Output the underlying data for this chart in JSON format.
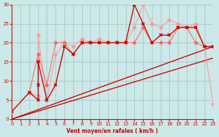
{
  "xlabel": "Vent moyen/en rafales ( km/h )",
  "ylabel": "",
  "xlim": [
    0,
    23
  ],
  "ylim": [
    0,
    30
  ],
  "xticks": [
    0,
    1,
    2,
    3,
    4,
    5,
    6,
    7,
    8,
    9,
    10,
    11,
    12,
    13,
    14,
    15,
    16,
    17,
    18,
    19,
    20,
    21,
    22,
    23
  ],
  "yticks": [
    0,
    5,
    10,
    15,
    20,
    25,
    30
  ],
  "bg_color": "#cce8e8",
  "grid_color": "#aacccc",
  "dark_red": "#cc0000",
  "light_pink": "#ff9999",
  "medium_pink": "#ff6666",
  "series_dark": {
    "x": [
      0,
      2,
      3,
      3,
      3,
      4,
      5,
      6,
      7,
      8,
      9,
      10,
      11,
      12,
      13,
      14,
      15,
      16,
      17,
      18,
      19,
      20,
      21,
      22,
      23
    ],
    "y": [
      2,
      7,
      5,
      9,
      15,
      5,
      9,
      19,
      17,
      20,
      20,
      20,
      20,
      20,
      20,
      30,
      25,
      20,
      22,
      22,
      24,
      24,
      24,
      19,
      19
    ]
  },
  "line1": {
    "x": [
      0,
      23
    ],
    "y": [
      0,
      19
    ]
  },
  "line2": {
    "x": [
      0,
      23
    ],
    "y": [
      0,
      16
    ]
  },
  "series_light1": {
    "x": [
      0,
      2,
      3,
      3,
      4,
      5,
      6,
      7,
      8,
      9,
      10,
      11,
      12,
      13,
      14,
      15,
      16,
      17,
      18,
      19,
      20,
      21,
      22,
      23
    ],
    "y": [
      2,
      7,
      6,
      22,
      5,
      17,
      20,
      19,
      21,
      20,
      21,
      20,
      20,
      20,
      24,
      30,
      25,
      24,
      26,
      25,
      24,
      25,
      19,
      4
    ]
  },
  "series_light2": {
    "x": [
      2,
      3,
      4,
      5,
      6,
      7,
      8,
      9,
      10,
      11,
      12,
      13,
      14,
      15,
      16,
      17,
      18,
      19,
      20,
      21,
      22,
      23
    ],
    "y": [
      7,
      17,
      9,
      20,
      20,
      17,
      20,
      20,
      20,
      20,
      20,
      20,
      20,
      24,
      20,
      20,
      20,
      24,
      24,
      20,
      19,
      19
    ]
  }
}
